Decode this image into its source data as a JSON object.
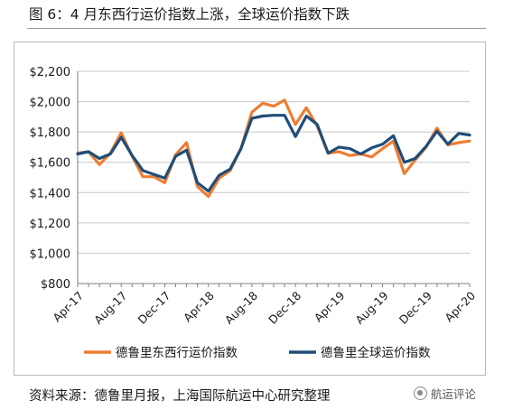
{
  "figure_title": "图 6：4 月东西行运价指数上涨，全球运价指数下跌",
  "source_text": "资料来源：德鲁里月报，上海国际航运中心研究整理",
  "watermark": {
    "text": "航运评论",
    "icon": "wechat-logo-icon"
  },
  "chart_data": {
    "type": "line",
    "title": "",
    "xlabel": "",
    "ylabel": "",
    "ylim": [
      800,
      2200
    ],
    "yticks": [
      800,
      1000,
      1200,
      1400,
      1600,
      1800,
      2000,
      2200
    ],
    "ytick_labels": [
      "$800",
      "$1,000",
      "$1,200",
      "$1,400",
      "$1,600",
      "$1,800",
      "$2,000",
      "$2,200"
    ],
    "xtick_labels": [
      "Apr-17",
      "Aug-17",
      "Dec-17",
      "Apr-18",
      "Aug-18",
      "Dec-18",
      "Apr-19",
      "Aug-19",
      "Dec-19",
      "Apr-20"
    ],
    "x": [
      "Apr-17",
      "May-17",
      "Jun-17",
      "Jul-17",
      "Aug-17",
      "Sep-17",
      "Oct-17",
      "Nov-17",
      "Dec-17",
      "Jan-18",
      "Feb-18",
      "Mar-18",
      "Apr-18",
      "May-18",
      "Jun-18",
      "Jul-18",
      "Aug-18",
      "Sep-18",
      "Oct-18",
      "Nov-18",
      "Dec-18",
      "Jan-19",
      "Feb-19",
      "Mar-19",
      "Apr-19",
      "May-19",
      "Jun-19",
      "Jul-19",
      "Aug-19",
      "Sep-19",
      "Oct-19",
      "Nov-19",
      "Dec-19",
      "Jan-20",
      "Feb-20",
      "Mar-20",
      "Apr-20"
    ],
    "grid": true,
    "legend_position": "bottom",
    "series": [
      {
        "name": "德鲁里东西行运价指数",
        "color": "#ED7D31",
        "values": [
          1660,
          1670,
          1585,
          1660,
          1795,
          1640,
          1505,
          1505,
          1465,
          1650,
          1730,
          1440,
          1375,
          1495,
          1545,
          1690,
          1930,
          1990,
          1970,
          2010,
          1850,
          1960,
          1840,
          1660,
          1670,
          1645,
          1655,
          1635,
          1690,
          1740,
          1525,
          1615,
          1700,
          1825,
          1715,
          1730,
          1740
        ]
      },
      {
        "name": "德鲁里全球运价指数",
        "color": "#1F4E79",
        "values": [
          1655,
          1670,
          1625,
          1655,
          1765,
          1645,
          1545,
          1520,
          1495,
          1640,
          1680,
          1465,
          1410,
          1515,
          1555,
          1690,
          1890,
          1905,
          1910,
          1910,
          1770,
          1905,
          1850,
          1660,
          1700,
          1690,
          1655,
          1695,
          1720,
          1775,
          1600,
          1625,
          1705,
          1805,
          1720,
          1790,
          1780
        ]
      }
    ]
  }
}
